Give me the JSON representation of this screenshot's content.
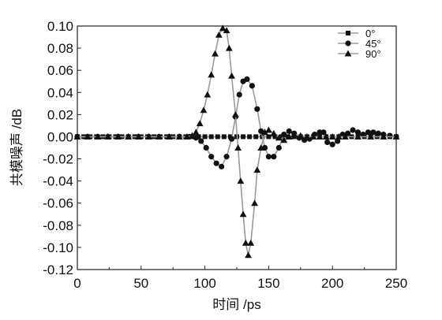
{
  "chart_data": {
    "type": "line",
    "title": "",
    "xlabel": "时间 /ps",
    "ylabel": "共模噪声 /dB",
    "xlim": [
      0,
      250
    ],
    "ylim": [
      -0.12,
      0.1
    ],
    "xticks": [
      "0",
      "50",
      "100",
      "150",
      "200",
      "250"
    ],
    "yticks": [
      "0.10",
      "0.08",
      "0.06",
      "0.04",
      "0.02",
      "0.00",
      "-0.02",
      "-0.04",
      "-0.06",
      "-0.08",
      "-0.10",
      "-0.12"
    ],
    "grid": false,
    "legend_position": "top-right",
    "line_color": "#9a9a9a",
    "marker_color": "#111111",
    "series": [
      {
        "name": "0°",
        "marker": "square",
        "points": [
          [
            0,
            0
          ],
          [
            5,
            0
          ],
          [
            10,
            0
          ],
          [
            15,
            0
          ],
          [
            20,
            0
          ],
          [
            25,
            0
          ],
          [
            30,
            0
          ],
          [
            35,
            0
          ],
          [
            40,
            0
          ],
          [
            45,
            0
          ],
          [
            50,
            0
          ],
          [
            55,
            0
          ],
          [
            60,
            0
          ],
          [
            65,
            0
          ],
          [
            70,
            0
          ],
          [
            75,
            0
          ],
          [
            80,
            0
          ],
          [
            85,
            0
          ],
          [
            90,
            0
          ],
          [
            95,
            0
          ],
          [
            100,
            0
          ],
          [
            105,
            0
          ],
          [
            110,
            0
          ],
          [
            115,
            0
          ],
          [
            120,
            0
          ],
          [
            125,
            0
          ],
          [
            130,
            0
          ],
          [
            135,
            0
          ],
          [
            140,
            0
          ],
          [
            145,
            0
          ],
          [
            150,
            0
          ],
          [
            155,
            0
          ],
          [
            160,
            0
          ],
          [
            165,
            0
          ],
          [
            170,
            0
          ],
          [
            175,
            0
          ],
          [
            180,
            0
          ],
          [
            185,
            0
          ],
          [
            190,
            0
          ],
          [
            195,
            0
          ],
          [
            200,
            0
          ],
          [
            205,
            0
          ],
          [
            210,
            0
          ],
          [
            215,
            0
          ],
          [
            220,
            0
          ],
          [
            225,
            0
          ],
          [
            230,
            0
          ],
          [
            235,
            0
          ],
          [
            240,
            0
          ],
          [
            245,
            0
          ],
          [
            250,
            0
          ]
        ]
      },
      {
        "name": "45°",
        "marker": "circle",
        "points": [
          [
            0,
            0
          ],
          [
            8,
            0
          ],
          [
            16,
            0
          ],
          [
            24,
            0
          ],
          [
            32,
            0
          ],
          [
            40,
            0
          ],
          [
            48,
            0
          ],
          [
            56,
            0
          ],
          [
            64,
            0
          ],
          [
            72,
            0
          ],
          [
            80,
            0
          ],
          [
            88,
            0
          ],
          [
            93,
            -0.001
          ],
          [
            97,
            -0.004
          ],
          [
            101,
            -0.01
          ],
          [
            105,
            -0.018
          ],
          [
            109,
            -0.024
          ],
          [
            113,
            -0.027
          ],
          [
            117,
            -0.018
          ],
          [
            121,
            -0.002
          ],
          [
            124,
            0.018
          ],
          [
            127,
            0.038
          ],
          [
            130,
            0.05
          ],
          [
            133,
            0.052
          ],
          [
            137,
            0.046
          ],
          [
            141,
            0.025
          ],
          [
            144,
            0.005
          ],
          [
            147,
            -0.01
          ],
          [
            150,
            -0.018
          ],
          [
            154,
            -0.018
          ],
          [
            158,
            -0.01
          ],
          [
            162,
            0.002
          ],
          [
            166,
            0.005
          ],
          [
            170,
            0.003
          ],
          [
            174,
            -0.001
          ],
          [
            178,
            -0.003
          ],
          [
            182,
            -0.002
          ],
          [
            186,
            0.002
          ],
          [
            190,
            0.004
          ],
          [
            193,
            0.004
          ],
          [
            196,
            -0.005
          ],
          [
            200,
            -0.007
          ],
          [
            204,
            -0.004
          ],
          [
            208,
            0.002
          ],
          [
            212,
            0.003
          ],
          [
            216,
            0.006
          ],
          [
            220,
            0.004
          ],
          [
            224,
            0.002
          ],
          [
            228,
            0.004
          ],
          [
            232,
            0.004
          ],
          [
            236,
            0.003
          ],
          [
            240,
            0.002
          ],
          [
            245,
            0.001
          ],
          [
            250,
            0
          ]
        ]
      },
      {
        "name": "90°",
        "marker": "triangle",
        "points": [
          [
            0,
            0
          ],
          [
            8,
            0
          ],
          [
            16,
            0
          ],
          [
            24,
            0
          ],
          [
            32,
            0
          ],
          [
            40,
            0
          ],
          [
            48,
            0
          ],
          [
            56,
            0
          ],
          [
            64,
            0
          ],
          [
            72,
            0
          ],
          [
            80,
            0
          ],
          [
            86,
            0
          ],
          [
            90,
            0.001
          ],
          [
            93,
            0.004
          ],
          [
            96,
            0.012
          ],
          [
            99,
            0.024
          ],
          [
            102,
            0.038
          ],
          [
            105,
            0.056
          ],
          [
            108,
            0.075
          ],
          [
            111,
            0.092
          ],
          [
            114,
            0.098
          ],
          [
            117,
            0.096
          ],
          [
            119,
            0.08
          ],
          [
            121,
            0.055
          ],
          [
            124,
            0.02
          ],
          [
            126,
            -0.01
          ],
          [
            128,
            -0.04
          ],
          [
            130,
            -0.07
          ],
          [
            132,
            -0.096
          ],
          [
            134,
            -0.107
          ],
          [
            136,
            -0.096
          ],
          [
            139,
            -0.06
          ],
          [
            141,
            -0.03
          ],
          [
            144,
            -0.01
          ],
          [
            147,
            0.004
          ],
          [
            150,
            0.006
          ],
          [
            154,
            0.003
          ],
          [
            158,
            -0.001
          ],
          [
            162,
            -0.003
          ],
          [
            166,
            0
          ],
          [
            170,
            0.002
          ],
          [
            175,
            0.001
          ],
          [
            180,
            0
          ],
          [
            185,
            0
          ],
          [
            190,
            0
          ],
          [
            195,
            0
          ],
          [
            200,
            0
          ],
          [
            205,
            0
          ],
          [
            210,
            0
          ],
          [
            220,
            0
          ],
          [
            230,
            0
          ],
          [
            240,
            0
          ],
          [
            250,
            0
          ]
        ]
      }
    ]
  }
}
